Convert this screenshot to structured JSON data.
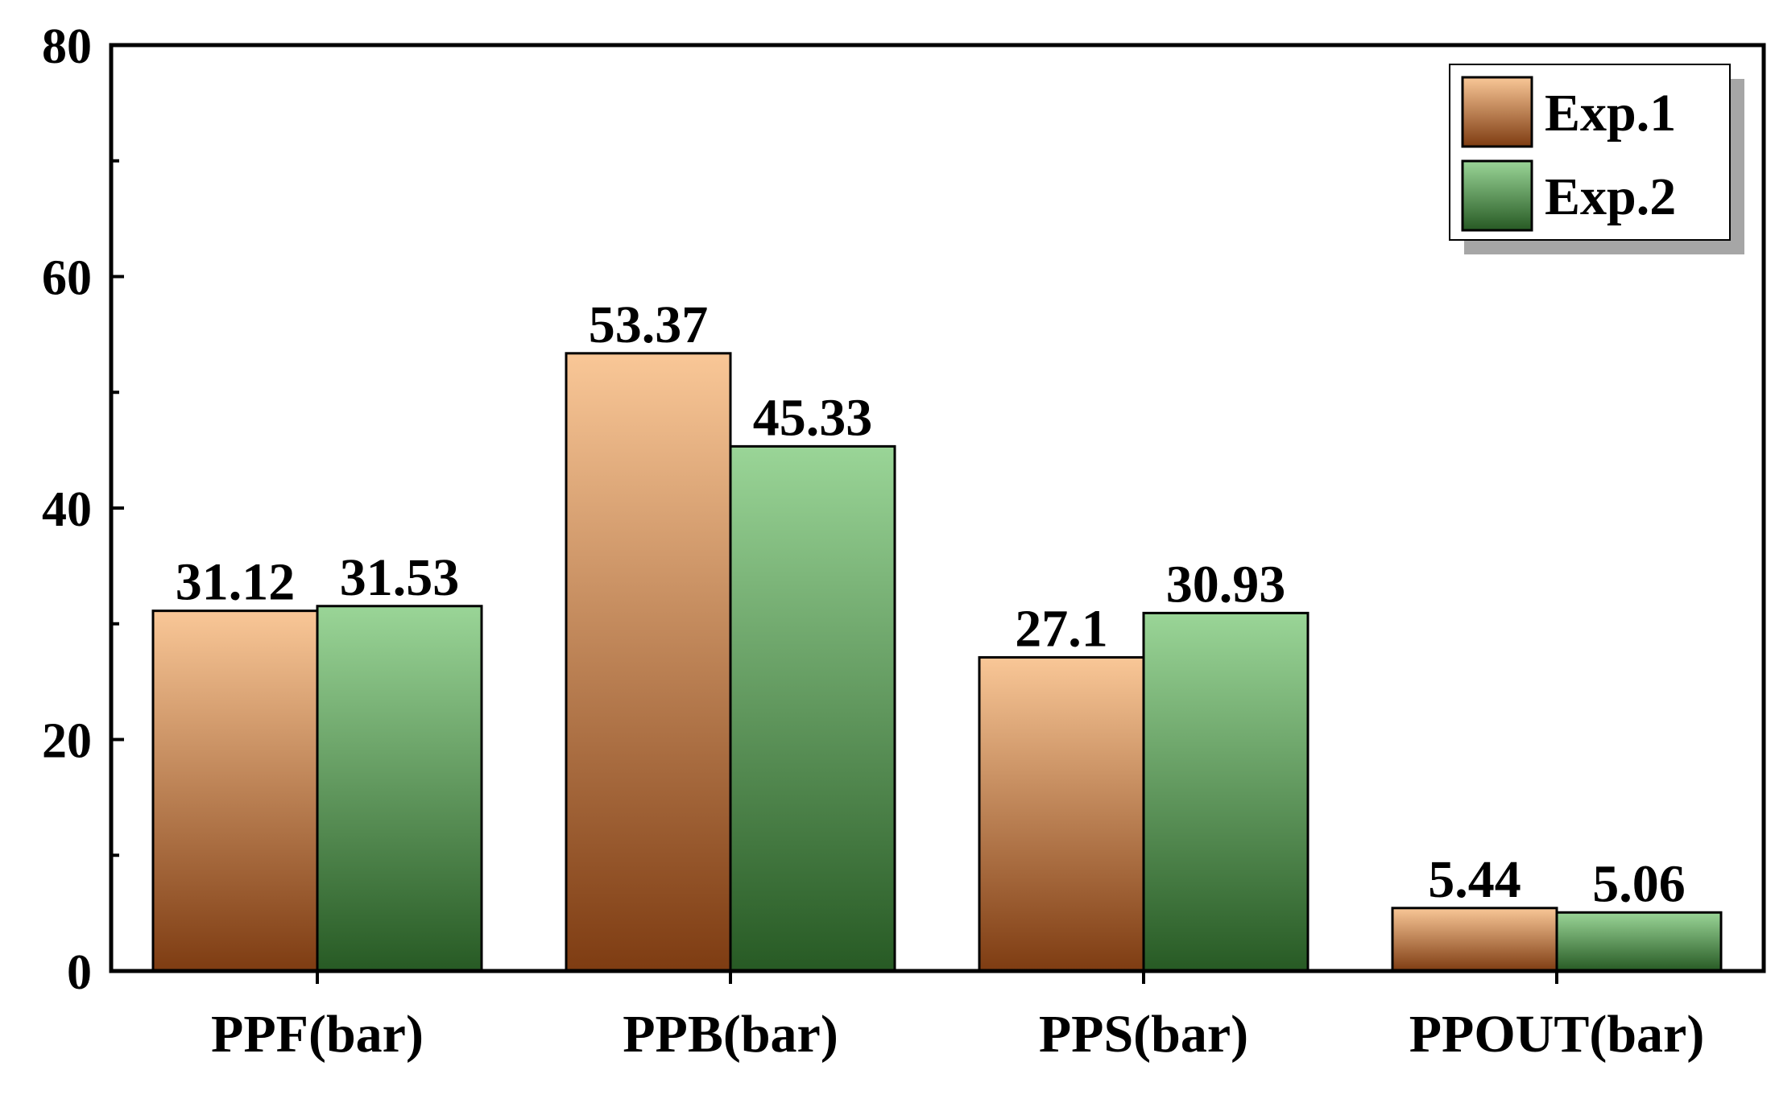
{
  "chart_data": {
    "type": "bar",
    "categories": [
      "PPF(bar)",
      "PPB(bar)",
      "PPS(bar)",
      "PPOUT(bar)"
    ],
    "series": [
      {
        "name": "Exp.1",
        "values": [
          31.12,
          53.37,
          27.1,
          5.44
        ],
        "value_labels": [
          "31.12",
          "53.37",
          "27.1",
          "5.44"
        ]
      },
      {
        "name": "Exp.2",
        "values": [
          31.53,
          45.33,
          30.93,
          5.06
        ],
        "value_labels": [
          "31.53",
          "45.33",
          "30.93",
          "5.06"
        ]
      }
    ],
    "ylim": [
      0,
      80
    ],
    "yticks": [
      0,
      20,
      40,
      60,
      80
    ],
    "yticks_labels": [
      "0",
      "20",
      "40",
      "60",
      "80"
    ],
    "y_minor_ticks": [
      10,
      30,
      50,
      70
    ],
    "grid": false,
    "legend_position": "top-right",
    "colors": {
      "Exp.1": {
        "top": "#f9c797",
        "bottom": "#7e3c12"
      },
      "Exp.2": {
        "top": "#9ad597",
        "bottom": "#275a24"
      }
    },
    "legend_shadow_color": "#a6a6a6"
  }
}
